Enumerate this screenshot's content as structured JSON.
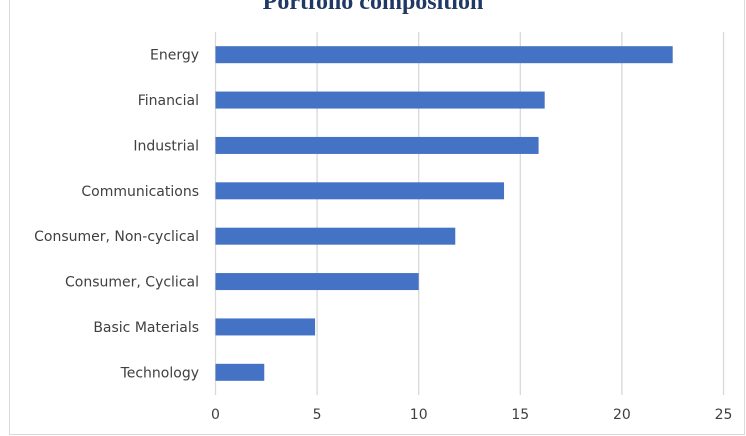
{
  "chart_data": {
    "type": "bar",
    "orientation": "horizontal",
    "title": "Portfolio composition",
    "categories": [
      "Energy",
      "Financial",
      "Industrial",
      "Communications",
      "Consumer, Non-cyclical",
      "Consumer, Cyclical",
      "Basic Materials",
      "Technology"
    ],
    "values": [
      22.5,
      16.2,
      15.9,
      14.2,
      11.8,
      10.0,
      4.9,
      2.4
    ],
    "xlim": [
      0,
      25
    ],
    "xticks": [
      "0",
      "5",
      "10",
      "15",
      "20",
      "25"
    ],
    "grid": "vertical",
    "bar_color": "#4472c4",
    "grid_color": "#d9d9d9",
    "title_color": "#1f3864"
  }
}
